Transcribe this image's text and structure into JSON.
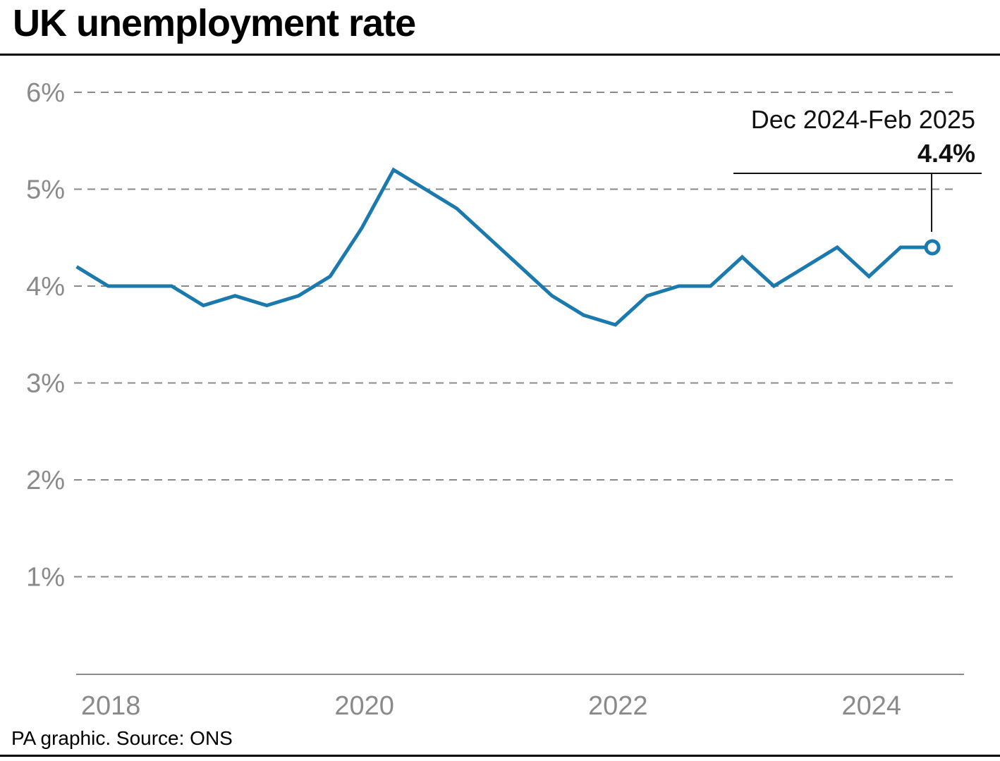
{
  "header": {
    "title": "UK unemployment rate"
  },
  "footer": {
    "source": "PA graphic. Source: ONS"
  },
  "annotation": {
    "period": "Dec 2024-Feb 2025",
    "value": "4.4%"
  },
  "colors": {
    "line": "#1a7aad",
    "grid": "#8a8a8a",
    "axis": "#8a8a8a",
    "tick_text": "#8a8a8a"
  },
  "chart_data": {
    "type": "line",
    "title": "UK unemployment rate",
    "xlabel": "",
    "ylabel": "",
    "grid": true,
    "y_unit": "%",
    "ylim": [
      0,
      6
    ],
    "xlim": [
      2017.9,
      2024.92
    ],
    "yticks": [
      1,
      2,
      3,
      4,
      5,
      6
    ],
    "ytick_labels": [
      "1%",
      "2%",
      "3%",
      "4%",
      "5%",
      "6%"
    ],
    "xticks": [
      2018.19,
      2020.19,
      2022.19,
      2024.19
    ],
    "xtick_labels": [
      "2018",
      "2020",
      "2022",
      "2024"
    ],
    "series": [
      {
        "name": "",
        "x": [
          2017.92,
          2018.17,
          2018.42,
          2018.67,
          2018.92,
          2019.17,
          2019.42,
          2019.67,
          2019.92,
          2020.17,
          2020.42,
          2020.67,
          2020.92,
          2021.17,
          2021.42,
          2021.67,
          2021.92,
          2022.17,
          2022.42,
          2022.67,
          2022.92,
          2023.17,
          2023.42,
          2023.67,
          2023.92,
          2024.17,
          2024.42,
          2024.67
        ],
        "y": [
          4.2,
          4.0,
          4.0,
          4.0,
          3.8,
          3.9,
          3.8,
          3.9,
          4.1,
          4.6,
          5.2,
          5.0,
          4.8,
          4.5,
          4.2,
          3.9,
          3.7,
          3.6,
          3.9,
          4.0,
          4.0,
          4.3,
          4.0,
          4.2,
          4.4,
          4.1,
          4.4,
          4.4
        ]
      }
    ],
    "highlight": {
      "x": 2024.67,
      "y": 4.4
    }
  }
}
